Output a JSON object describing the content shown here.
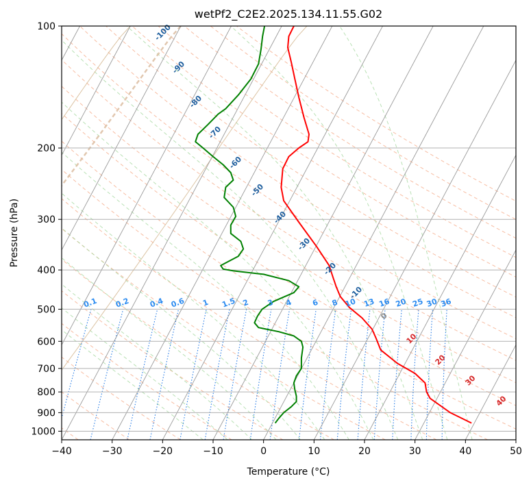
{
  "chart_data": {
    "type": "line",
    "title": "wetPf2_C2E2.2025.134.11.55.G02",
    "xlabel": "Temperature (°C)",
    "ylabel": "Pressure (hPa)",
    "xlim": [
      -40,
      50
    ],
    "ylim": [
      1050,
      100
    ],
    "y_scale": "log",
    "grid": true,
    "x_ticks": [
      "−40",
      "−30",
      "−20",
      "−10",
      "0",
      "10",
      "20",
      "30",
      "40",
      "50"
    ],
    "y_ticks": [
      {
        "p": 100,
        "label": "100"
      },
      {
        "p": 200,
        "label": "200"
      },
      {
        "p": 300,
        "label": "300"
      },
      {
        "p": 400,
        "label": "400"
      },
      {
        "p": 500,
        "label": "500"
      },
      {
        "p": 600,
        "label": "600"
      },
      {
        "p": 700,
        "label": "700"
      },
      {
        "p": 800,
        "label": "800"
      },
      {
        "p": 900,
        "label": "900"
      },
      {
        "p": 1000,
        "label": "1000"
      }
    ],
    "series": [
      {
        "color": "#ff0000",
        "points": [
          [
            41.2,
            955
          ],
          [
            37,
            900
          ],
          [
            33,
            830
          ],
          [
            32.3,
            800
          ],
          [
            32,
            760
          ],
          [
            30,
            720
          ],
          [
            26.5,
            680
          ],
          [
            23.2,
            630
          ],
          [
            22.3,
            590
          ],
          [
            21.5,
            560
          ],
          [
            19.5,
            525
          ],
          [
            17,
            495
          ],
          [
            15.2,
            465
          ],
          [
            14.4,
            440
          ],
          [
            13.7,
            415
          ],
          [
            13,
            390
          ],
          [
            10.5,
            350
          ],
          [
            7,
            305
          ],
          [
            4,
            270
          ],
          [
            3.5,
            250
          ],
          [
            3.8,
            225
          ],
          [
            5,
            210
          ],
          [
            7,
            200
          ],
          [
            8.8,
            193
          ],
          [
            9,
            185
          ],
          [
            8,
            168
          ],
          [
            7,
            150
          ],
          [
            6.2,
            135
          ],
          [
            5.5,
            123
          ],
          [
            4.8,
            113
          ],
          [
            5,
            106
          ],
          [
            6,
            100
          ]
        ]
      },
      {
        "color": "#008000",
        "points": [
          [
            2.3,
            955
          ],
          [
            3,
            930
          ],
          [
            4,
            900
          ],
          [
            5.5,
            870
          ],
          [
            6.5,
            845
          ],
          [
            6.5,
            820
          ],
          [
            6.2,
            790
          ],
          [
            6,
            760
          ],
          [
            6.5,
            730
          ],
          [
            7.5,
            700
          ],
          [
            7.5,
            660
          ],
          [
            7.8,
            620
          ],
          [
            7.5,
            600
          ],
          [
            6,
            582
          ],
          [
            3,
            568
          ],
          [
            -1,
            555
          ],
          [
            -1.8,
            540
          ],
          [
            -1.2,
            520
          ],
          [
            -0.3,
            500
          ],
          [
            2,
            478
          ],
          [
            6,
            455
          ],
          [
            7,
            440
          ],
          [
            5,
            425
          ],
          [
            0,
            410
          ],
          [
            -6,
            402
          ],
          [
            -8,
            398
          ],
          [
            -8.5,
            390
          ],
          [
            -5,
            370
          ],
          [
            -4,
            355
          ],
          [
            -4.5,
            340
          ],
          [
            -6.5,
            325
          ],
          [
            -6.5,
            310
          ],
          [
            -5.5,
            295
          ],
          [
            -6,
            280
          ],
          [
            -7.8,
            265
          ],
          [
            -7.5,
            250
          ],
          [
            -6,
            240
          ],
          [
            -6.5,
            230
          ],
          [
            -8,
            220
          ],
          [
            -10,
            210
          ],
          [
            -12,
            200
          ],
          [
            -13.5,
            193
          ],
          [
            -13,
            185
          ],
          [
            -11,
            175
          ],
          [
            -9,
            165
          ],
          [
            -7.5,
            160
          ],
          [
            -5,
            148
          ],
          [
            -2.5,
            135
          ],
          [
            -1,
            124
          ],
          [
            -0.5,
            114
          ],
          [
            -0.2,
            106
          ],
          [
            0.2,
            100
          ]
        ]
      }
    ],
    "dry_adiabats_c": [
      -40,
      -30,
      -20,
      -10,
      0,
      10,
      20,
      30,
      40,
      50,
      60,
      70,
      80,
      90,
      100,
      110,
      120,
      130,
      140,
      150,
      160
    ],
    "moist_adiabats_c": [
      -15,
      -10,
      -5,
      0,
      5,
      10,
      15,
      20,
      25,
      30,
      35,
      40
    ],
    "isotherm_labels": [
      "-100",
      "-90",
      "-80",
      "-70",
      "-60",
      "-50",
      "-40",
      "-30",
      "-20",
      "-10",
      "0",
      "10",
      "20",
      "30",
      "40"
    ],
    "mixing_ratio_labels": [
      "0.1",
      "0.2",
      "0.4",
      "0.6",
      "1",
      "1.5",
      "2",
      "3",
      "4",
      "6",
      "8",
      "10",
      "13",
      "16",
      "20",
      "25",
      "30",
      "36"
    ]
  }
}
